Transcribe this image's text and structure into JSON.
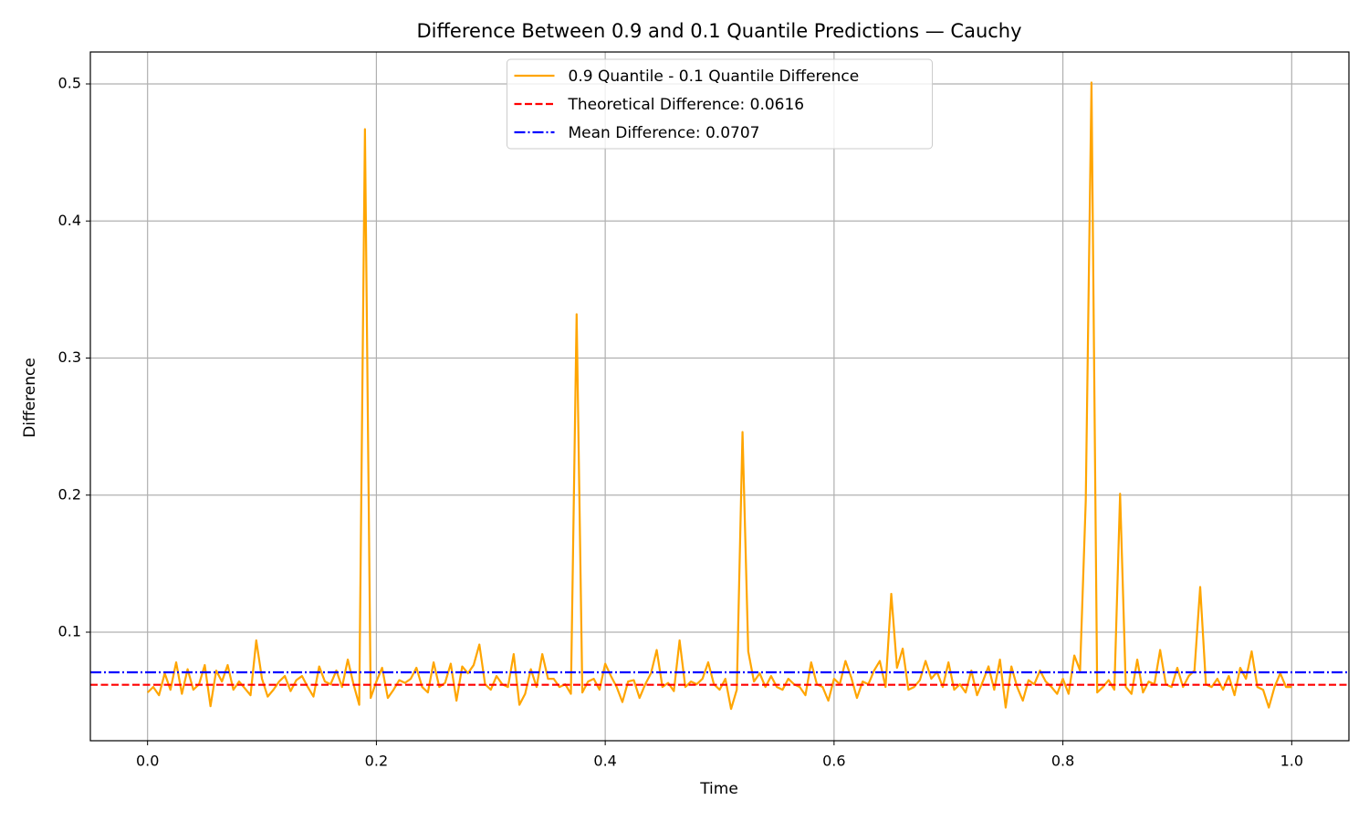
{
  "chart_data": {
    "type": "line",
    "title": "Difference Between 0.9 and 0.1 Quantile Predictions — Cauchy",
    "xlabel": "Time",
    "ylabel": "Difference",
    "x": [
      0,
      0.005,
      0.01,
      0.015,
      0.02,
      0.025,
      0.03,
      0.035,
      0.04,
      0.045,
      0.05,
      0.055,
      0.06,
      0.065,
      0.07,
      0.075,
      0.08,
      0.085,
      0.09,
      0.095,
      0.1,
      0.105,
      0.11,
      0.115,
      0.12,
      0.125,
      0.13,
      0.135,
      0.14,
      0.145,
      0.15,
      0.155,
      0.16,
      0.165,
      0.17,
      0.175,
      0.18,
      0.185,
      0.19,
      0.195,
      0.2,
      0.205,
      0.21,
      0.215,
      0.22,
      0.225,
      0.23,
      0.235,
      0.24,
      0.245,
      0.25,
      0.255,
      0.26,
      0.265,
      0.27,
      0.275,
      0.28,
      0.285,
      0.29,
      0.295,
      0.3,
      0.305,
      0.31,
      0.315,
      0.32,
      0.325,
      0.33,
      0.335,
      0.34,
      0.345,
      0.35,
      0.355,
      0.36,
      0.365,
      0.37,
      0.375,
      0.38,
      0.385,
      0.39,
      0.395,
      0.4,
      0.405,
      0.41,
      0.415,
      0.42,
      0.425,
      0.43,
      0.435,
      0.44,
      0.445,
      0.45,
      0.455,
      0.46,
      0.465,
      0.47,
      0.475,
      0.48,
      0.485,
      0.49,
      0.495,
      0.5,
      0.505,
      0.51,
      0.515,
      0.52,
      0.525,
      0.53,
      0.535,
      0.54,
      0.545,
      0.55,
      0.555,
      0.56,
      0.565,
      0.57,
      0.575,
      0.58,
      0.585,
      0.59,
      0.595,
      0.6,
      0.605,
      0.61,
      0.615,
      0.62,
      0.625,
      0.63,
      0.635,
      0.64,
      0.645,
      0.65,
      0.655,
      0.66,
      0.665,
      0.67,
      0.675,
      0.68,
      0.685,
      0.69,
      0.695,
      0.7,
      0.705,
      0.71,
      0.715,
      0.72,
      0.725,
      0.73,
      0.735,
      0.74,
      0.745,
      0.75,
      0.755,
      0.76,
      0.765,
      0.77,
      0.775,
      0.78,
      0.785,
      0.79,
      0.795,
      0.8,
      0.805,
      0.81,
      0.815,
      0.82,
      0.825,
      0.83,
      0.835,
      0.84,
      0.845,
      0.85,
      0.855,
      0.86,
      0.865,
      0.87,
      0.875,
      0.88,
      0.885,
      0.89,
      0.895,
      0.9,
      0.905,
      0.91,
      0.915,
      0.92,
      0.925,
      0.93,
      0.935,
      0.94,
      0.945,
      0.95,
      0.955,
      0.96,
      0.965,
      0.97,
      0.975,
      0.98,
      0.985,
      0.99,
      0.995,
      1.0
    ],
    "series": [
      {
        "name": "0.9 Quantile - 0.1 Quantile Difference",
        "color": "#ffa500",
        "values": [
          0.056,
          0.06,
          0.054,
          0.07,
          0.058,
          0.078,
          0.055,
          0.073,
          0.058,
          0.062,
          0.076,
          0.046,
          0.072,
          0.064,
          0.076,
          0.058,
          0.064,
          0.059,
          0.054,
          0.094,
          0.066,
          0.053,
          0.058,
          0.064,
          0.068,
          0.057,
          0.065,
          0.068,
          0.06,
          0.053,
          0.075,
          0.064,
          0.062,
          0.072,
          0.06,
          0.08,
          0.062,
          0.047,
          0.467,
          0.052,
          0.064,
          0.074,
          0.052,
          0.058,
          0.065,
          0.063,
          0.066,
          0.074,
          0.06,
          0.056,
          0.078,
          0.06,
          0.063,
          0.077,
          0.05,
          0.075,
          0.07,
          0.076,
          0.091,
          0.062,
          0.058,
          0.068,
          0.062,
          0.06,
          0.084,
          0.047,
          0.055,
          0.073,
          0.06,
          0.084,
          0.066,
          0.066,
          0.06,
          0.062,
          0.055,
          0.332,
          0.056,
          0.064,
          0.066,
          0.058,
          0.077,
          0.068,
          0.06,
          0.049,
          0.064,
          0.065,
          0.052,
          0.062,
          0.07,
          0.087,
          0.06,
          0.063,
          0.057,
          0.094,
          0.06,
          0.064,
          0.062,
          0.066,
          0.078,
          0.062,
          0.058,
          0.066,
          0.044,
          0.058,
          0.246,
          0.086,
          0.064,
          0.07,
          0.06,
          0.068,
          0.06,
          0.058,
          0.066,
          0.062,
          0.06,
          0.054,
          0.078,
          0.062,
          0.06,
          0.05,
          0.066,
          0.062,
          0.079,
          0.067,
          0.052,
          0.064,
          0.062,
          0.072,
          0.079,
          0.06,
          0.128,
          0.074,
          0.088,
          0.058,
          0.06,
          0.065,
          0.079,
          0.066,
          0.071,
          0.06,
          0.078,
          0.058,
          0.062,
          0.056,
          0.072,
          0.054,
          0.064,
          0.075,
          0.058,
          0.08,
          0.045,
          0.075,
          0.06,
          0.05,
          0.065,
          0.062,
          0.072,
          0.064,
          0.06,
          0.055,
          0.066,
          0.055,
          0.083,
          0.072,
          0.196,
          0.501,
          0.056,
          0.06,
          0.065,
          0.058,
          0.201,
          0.06,
          0.055,
          0.08,
          0.056,
          0.064,
          0.062,
          0.087,
          0.062,
          0.06,
          0.074,
          0.06,
          0.068,
          0.072,
          0.133,
          0.062,
          0.06,
          0.066,
          0.058,
          0.068,
          0.054,
          0.074,
          0.066,
          0.086,
          0.06,
          0.058,
          0.045,
          0.06,
          0.07,
          0.06,
          0.06
        ]
      }
    ],
    "hlines": [
      {
        "name": "Theoretical Difference: 0.0616",
        "value": 0.0616,
        "color": "#ff0000",
        "style": "dashed"
      },
      {
        "name": "Mean Difference: 0.0707",
        "value": 0.0707,
        "color": "#0000ff",
        "style": "dashdot"
      }
    ],
    "xlim": [
      -0.05,
      1.05
    ],
    "xticks": [
      {
        "value": 0,
        "label": "0.0"
      },
      0.2,
      0.4,
      0.6,
      0.8,
      {
        "value": 1,
        "label": "1.0"
      }
    ],
    "ylim": [
      0.0208,
      0.5233
    ],
    "yticks": [
      0.1,
      0.2,
      0.3,
      0.4,
      0.5
    ],
    "grid": true,
    "legend": "upper center"
  }
}
